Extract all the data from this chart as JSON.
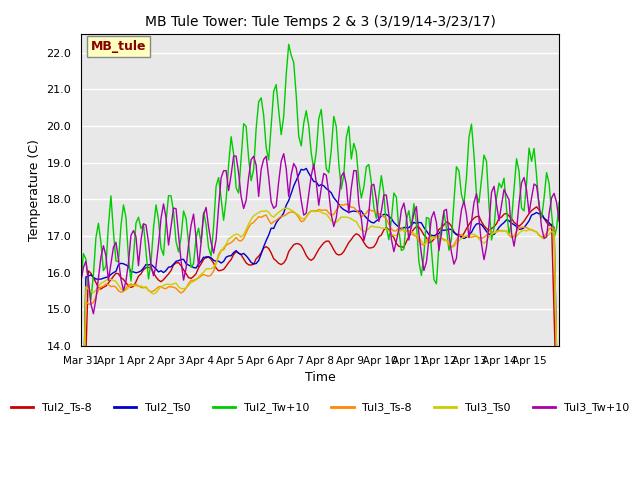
{
  "title": "MB Tule Tower: Tule Temps 2 & 3 (3/19/14-3/23/17)",
  "xlabel": "Time",
  "ylabel": "Temperature (C)",
  "ylim": [
    14.0,
    22.5
  ],
  "yticks": [
    14.0,
    15.0,
    16.0,
    17.0,
    18.0,
    19.0,
    20.0,
    21.0,
    22.0
  ],
  "xtick_labels": [
    "Mar 31",
    "Apr 1",
    "Apr 2",
    "Apr 3",
    "Apr 4",
    "Apr 5",
    "Apr 6",
    "Apr 7",
    "Apr 8",
    "Apr 9",
    "Apr 10",
    "Apr 11",
    "Apr 12",
    "Apr 13",
    "Apr 14",
    "Apr 15"
  ],
  "annotation_text": "MB_tule",
  "annotation_color": "#8B0000",
  "annotation_bg": "#FFFFC0",
  "bg_color": "#E8E8E8",
  "line_colors": {
    "Tul2_Ts-8": "#CC0000",
    "Tul2_Ts0": "#0000CC",
    "Tul2_Tw+10": "#00CC00",
    "Tul3_Ts-8": "#FF8800",
    "Tul3_Ts0": "#CCCC00",
    "Tul3_Tw+10": "#AA00AA"
  },
  "legend_labels": [
    "Tul2_Ts-8",
    "Tul2_Ts0",
    "Tul2_Tw+10",
    "Tul3_Ts-8",
    "Tul3_Ts0",
    "Tul3_Tw+10"
  ]
}
